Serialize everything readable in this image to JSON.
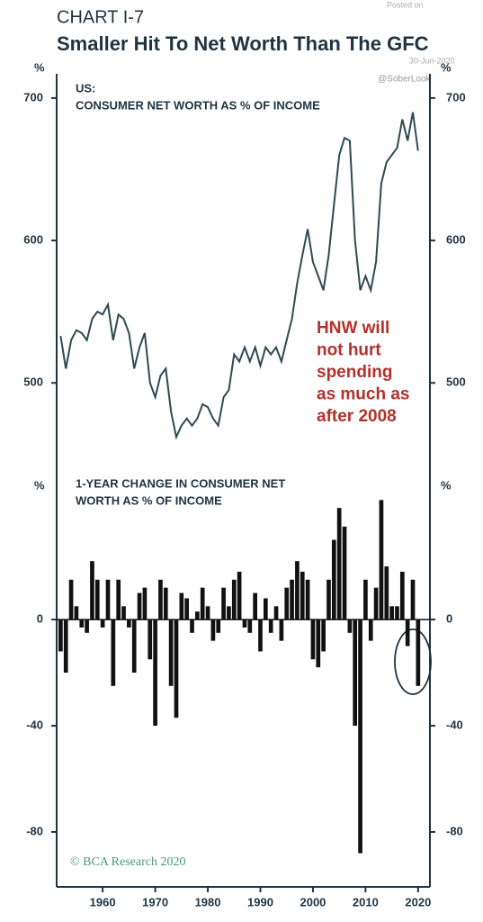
{
  "header": {
    "chart_no": "CHART I-7",
    "title": "Smaller Hit To Net Worth Than The GFC",
    "watermark": [
      "Posted on",
      "30-Jun-2020",
      "@SoberLook"
    ]
  },
  "source": "© BCA Research 2020",
  "chart_data": [
    {
      "type": "line",
      "title": [
        "US:",
        "CONSUMER NET WORTH AS % OF INCOME"
      ],
      "y_unit": "%",
      "color": "#2e4a52",
      "annotation": [
        "HNW will",
        "not hurt",
        "spending",
        "as much as",
        "after 2008"
      ],
      "x": [
        1952,
        1953,
        1954,
        1955,
        1956,
        1957,
        1958,
        1959,
        1960,
        1961,
        1962,
        1963,
        1964,
        1965,
        1966,
        1967,
        1968,
        1969,
        1970,
        1971,
        1972,
        1973,
        1974,
        1975,
        1976,
        1977,
        1978,
        1979,
        1980,
        1981,
        1982,
        1983,
        1984,
        1985,
        1986,
        1987,
        1988,
        1989,
        1990,
        1991,
        1992,
        1993,
        1994,
        1995,
        1996,
        1997,
        1998,
        1999,
        2000,
        2001,
        2002,
        2003,
        2004,
        2005,
        2006,
        2007,
        2008,
        2009,
        2010,
        2011,
        2012,
        2013,
        2014,
        2015,
        2016,
        2017,
        2018,
        2019,
        2020
      ],
      "values": [
        533,
        510,
        530,
        537,
        535,
        530,
        545,
        550,
        548,
        555,
        530,
        548,
        545,
        535,
        510,
        525,
        535,
        500,
        490,
        505,
        510,
        480,
        462,
        470,
        475,
        470,
        475,
        485,
        483,
        475,
        470,
        490,
        495,
        520,
        515,
        525,
        515,
        525,
        512,
        525,
        520,
        525,
        515,
        530,
        545,
        570,
        590,
        608,
        585,
        575,
        565,
        590,
        625,
        660,
        672,
        670,
        600,
        565,
        575,
        565,
        585,
        640,
        655,
        660,
        665,
        685,
        670,
        690,
        663
      ],
      "xlim": [
        1951.25,
        2022.25
      ],
      "ylim": [
        442,
        717
      ],
      "yticks": [
        500,
        600,
        700
      ]
    },
    {
      "type": "bar",
      "title": [
        "1-YEAR CHANGE IN CONSUMER NET",
        "WORTH AS % OF INCOME"
      ],
      "y_unit": "%",
      "color": "#111111",
      "x": [
        1952,
        1953,
        1954,
        1955,
        1956,
        1957,
        1958,
        1959,
        1960,
        1961,
        1962,
        1963,
        1964,
        1965,
        1966,
        1967,
        1968,
        1969,
        1970,
        1971,
        1972,
        1973,
        1974,
        1975,
        1976,
        1977,
        1978,
        1979,
        1980,
        1981,
        1982,
        1983,
        1984,
        1985,
        1986,
        1987,
        1988,
        1989,
        1990,
        1991,
        1992,
        1993,
        1994,
        1995,
        1996,
        1997,
        1998,
        1999,
        2000,
        2001,
        2002,
        2003,
        2004,
        2005,
        2006,
        2007,
        2008,
        2009,
        2010,
        2011,
        2012,
        2013,
        2014,
        2015,
        2016,
        2017,
        2018,
        2019,
        2020
      ],
      "values": [
        -12,
        -20,
        15,
        5,
        -3,
        -5,
        22,
        15,
        -3,
        15,
        -25,
        15,
        5,
        -3,
        -20,
        10,
        12,
        -15,
        -40,
        15,
        12,
        -25,
        -37,
        10,
        8,
        -5,
        3,
        12,
        5,
        -8,
        -5,
        12,
        5,
        15,
        18,
        -3,
        -5,
        10,
        -12,
        8,
        -5,
        5,
        -8,
        12,
        15,
        22,
        18,
        15,
        -15,
        -18,
        -12,
        15,
        30,
        42,
        35,
        -5,
        -40,
        -88,
        15,
        -8,
        12,
        45,
        20,
        5,
        5,
        18,
        -10,
        15,
        -25
      ],
      "xlim": [
        1951.25,
        2022.25
      ],
      "ylim": [
        -100,
        58
      ],
      "yticks": [
        -80,
        -40,
        0
      ],
      "xticks": [
        1960,
        1970,
        1980,
        1990,
        2000,
        2010,
        2020
      ]
    }
  ]
}
